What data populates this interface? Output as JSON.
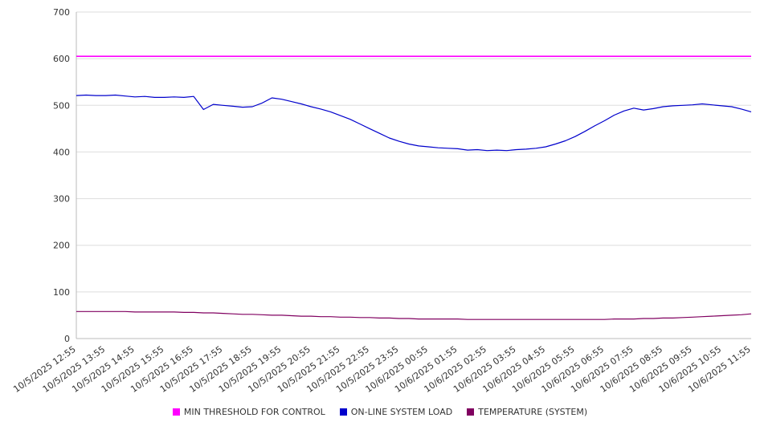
{
  "chart_data": {
    "type": "line",
    "title": "",
    "xlabel": "",
    "ylabel": "",
    "ylim": [
      0,
      700
    ],
    "ytick_step": 100,
    "grid": true,
    "legend_position": "bottom",
    "x_tick_labels": [
      "10/5/2025 12:55",
      "10/5/2025 13:55",
      "10/5/2025 14:55",
      "10/5/2025 15:55",
      "10/5/2025 16:55",
      "10/5/2025 17:55",
      "10/5/2025 18:55",
      "10/5/2025 19:55",
      "10/5/2025 20:55",
      "10/5/2025 21:55",
      "10/5/2025 22:55",
      "10/5/2025 23:55",
      "10/6/2025 00:55",
      "10/6/2025 01:55",
      "10/6/2025 02:55",
      "10/6/2025 03:55",
      "10/6/2025 04:55",
      "10/6/2025 05:55",
      "10/6/2025 06:55",
      "10/6/2025 07:55",
      "10/6/2025 08:55",
      "10/6/2025 09:55",
      "10/6/2025 10:55",
      "10/6/2025 11:55"
    ],
    "series": [
      {
        "name": "MIN THRESHOLD FOR CONTROL",
        "color": "#ff00ff",
        "constant": 605
      },
      {
        "name": "ON-LINE SYSTEM LOAD",
        "color": "#0000cc",
        "values": [
          521,
          522,
          521,
          521,
          522,
          520,
          518,
          519,
          517,
          517,
          518,
          517,
          519,
          491,
          502,
          500,
          498,
          496,
          497,
          505,
          516,
          513,
          508,
          503,
          497,
          492,
          486,
          478,
          470,
          460,
          450,
          440,
          430,
          423,
          417,
          413,
          411,
          409,
          408,
          407,
          404,
          405,
          403,
          404,
          403,
          405,
          406,
          408,
          411,
          417,
          424,
          433,
          444,
          456,
          467,
          479,
          488,
          494,
          490,
          493,
          497,
          499,
          500,
          501,
          503,
          501,
          499,
          497,
          492,
          486
        ]
      },
      {
        "name": "TEMPERATURE (SYSTEM)",
        "color": "#800060",
        "values": [
          58,
          58,
          58,
          58,
          58,
          58,
          57,
          57,
          57,
          57,
          57,
          56,
          56,
          55,
          55,
          54,
          53,
          52,
          52,
          51,
          50,
          50,
          49,
          48,
          48,
          47,
          47,
          46,
          46,
          45,
          45,
          44,
          44,
          43,
          43,
          42,
          42,
          42,
          42,
          42,
          41,
          41,
          41,
          41,
          41,
          41,
          41,
          41,
          41,
          41,
          41,
          41,
          41,
          41,
          41,
          42,
          42,
          42,
          43,
          43,
          44,
          44,
          45,
          46,
          47,
          48,
          49,
          50,
          51,
          53
        ]
      }
    ]
  }
}
